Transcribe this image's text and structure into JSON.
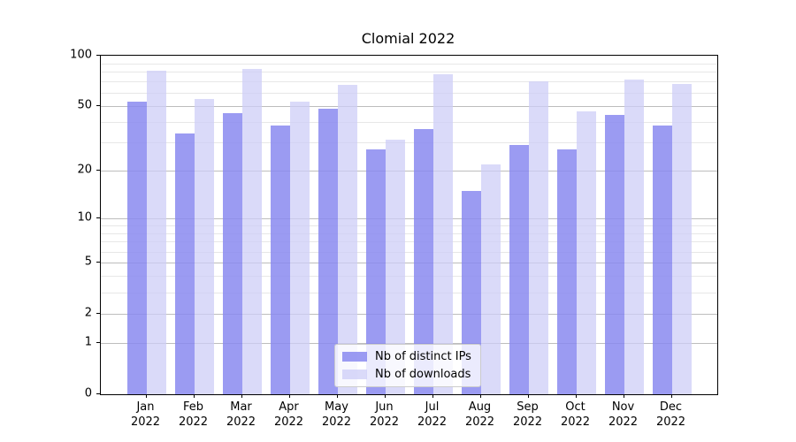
{
  "title": "Clomial 2022",
  "legend": {
    "items": [
      {
        "label": "Nb of distinct IPs",
        "color": "rgba(138,138,240,0.85)"
      },
      {
        "label": "Nb of downloads",
        "color": "rgba(205,205,247,0.75)"
      }
    ]
  },
  "y_axis": {
    "tick_labels": [
      "100",
      "50",
      "20",
      "10",
      "5",
      "2",
      "1",
      "0"
    ],
    "tick_values": [
      100,
      50,
      20,
      10,
      5,
      2,
      1,
      0
    ],
    "minor_tick_values": [
      3,
      4,
      6,
      7,
      8,
      9,
      30,
      40,
      60,
      70,
      80,
      90
    ]
  },
  "x_axis": {
    "months": [
      "Jan",
      "Feb",
      "Mar",
      "Apr",
      "May",
      "Jun",
      "Jul",
      "Aug",
      "Sep",
      "Oct",
      "Nov",
      "Dec"
    ],
    "year": "2022"
  },
  "chart_data": {
    "type": "bar",
    "title": "Clomial 2022",
    "categories": [
      "Jan 2022",
      "Feb 2022",
      "Mar 2022",
      "Apr 2022",
      "May 2022",
      "Jun 2022",
      "Jul 2022",
      "Aug 2022",
      "Sep 2022",
      "Oct 2022",
      "Nov 2022",
      "Dec 2022"
    ],
    "series": [
      {
        "name": "Nb of distinct IPs",
        "color": "rgba(138,138,240,0.85)",
        "values": [
          53,
          34,
          45,
          38,
          48,
          27,
          36,
          15,
          29,
          27,
          44,
          38
        ]
      },
      {
        "name": "Nb of downloads",
        "color": "rgba(205,205,247,0.75)",
        "values": [
          81,
          55,
          83,
          53,
          67,
          31,
          77,
          22,
          70,
          46,
          72,
          68
        ]
      }
    ],
    "y_scale": "log(value+1)",
    "y_ticks": [
      0,
      1,
      2,
      5,
      10,
      20,
      50,
      100
    ],
    "ylim": [
      0,
      100
    ],
    "xlabel": "",
    "ylabel": "",
    "grid": "both (major and minor horizontal gridlines)",
    "legend_position": "lower center"
  }
}
